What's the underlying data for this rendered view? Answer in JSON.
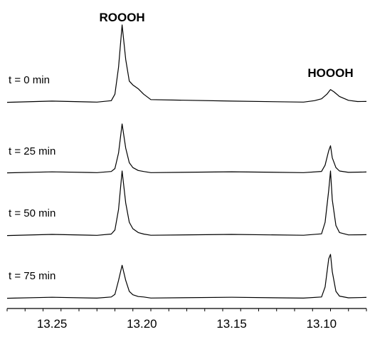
{
  "chart_data": {
    "type": "line",
    "title": "",
    "xlabel": "",
    "ylabel": "",
    "x_reversed": true,
    "xlim": [
      13.275,
      13.075
    ],
    "xticks": [
      13.25,
      13.2,
      13.15,
      13.1
    ],
    "xtick_labels": [
      "13.25",
      "13.20",
      "13.15",
      "13.10"
    ],
    "peak_labels": [
      {
        "text": "ROOOH",
        "x": 13.211
      },
      {
        "text": "HOOOH",
        "x": 13.095
      }
    ],
    "series": [
      {
        "name": "t = 0 min",
        "x": [
          13.275,
          13.25,
          13.225,
          13.217,
          13.215,
          13.213,
          13.211,
          13.209,
          13.207,
          13.205,
          13.202,
          13.199,
          13.195,
          13.15,
          13.11,
          13.104,
          13.1,
          13.097,
          13.095,
          13.093,
          13.09,
          13.085,
          13.08,
          13.075
        ],
        "y": [
          0,
          0.005,
          0.003,
          0.01,
          0.1,
          0.45,
          1.0,
          0.55,
          0.27,
          0.22,
          0.17,
          0.1,
          0.03,
          0.005,
          0.003,
          0.01,
          0.04,
          0.1,
          0.16,
          0.13,
          0.07,
          0.02,
          0.01,
          0
        ]
      },
      {
        "name": "t = 25 min",
        "x": [
          13.275,
          13.25,
          13.225,
          13.217,
          13.215,
          13.213,
          13.211,
          13.209,
          13.207,
          13.205,
          13.202,
          13.199,
          13.195,
          13.15,
          13.11,
          13.1,
          13.098,
          13.096,
          13.095,
          13.094,
          13.092,
          13.09,
          13.085,
          13.075
        ],
        "y": [
          0,
          0.003,
          0.004,
          0.01,
          0.08,
          0.4,
          1.0,
          0.5,
          0.2,
          0.1,
          0.04,
          0.01,
          0.005,
          0.005,
          0.004,
          0.02,
          0.15,
          0.45,
          0.55,
          0.3,
          0.1,
          0.03,
          0.01,
          0
        ]
      },
      {
        "name": "t = 50 min",
        "x": [
          13.275,
          13.25,
          13.225,
          13.217,
          13.215,
          13.213,
          13.211,
          13.209,
          13.207,
          13.205,
          13.202,
          13.199,
          13.195,
          13.15,
          13.11,
          13.1,
          13.098,
          13.096,
          13.095,
          13.094,
          13.092,
          13.09,
          13.085,
          13.075
        ],
        "y": [
          0,
          0.004,
          0.003,
          0.01,
          0.08,
          0.4,
          1.0,
          0.5,
          0.2,
          0.1,
          0.04,
          0.01,
          0.005,
          0.004,
          0.004,
          0.02,
          0.2,
          0.7,
          1.0,
          0.55,
          0.15,
          0.04,
          0.01,
          0
        ]
      },
      {
        "name": "t = 75 min",
        "x": [
          13.275,
          13.25,
          13.225,
          13.217,
          13.215,
          13.213,
          13.211,
          13.209,
          13.207,
          13.205,
          13.202,
          13.199,
          13.195,
          13.15,
          13.11,
          13.1,
          13.098,
          13.096,
          13.095,
          13.094,
          13.092,
          13.09,
          13.085,
          13.075
        ],
        "y": [
          0,
          0.004,
          0.004,
          0.01,
          0.08,
          0.4,
          0.75,
          0.4,
          0.15,
          0.07,
          0.03,
          0.01,
          0.005,
          0.004,
          0.004,
          0.02,
          0.25,
          0.9,
          1.0,
          0.6,
          0.15,
          0.04,
          0.01,
          0
        ]
      }
    ]
  }
}
